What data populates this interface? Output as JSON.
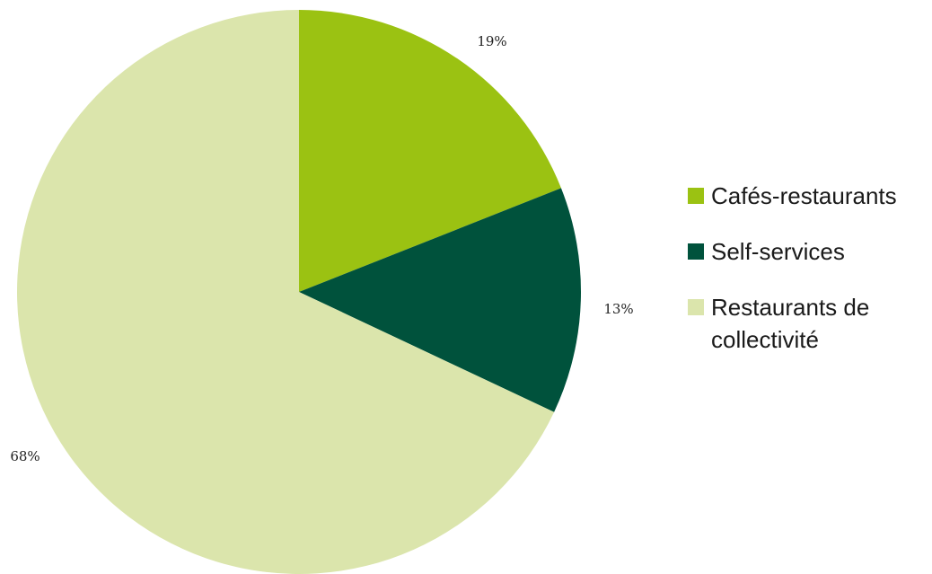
{
  "chart_data": {
    "type": "pie",
    "title": "",
    "slices": [
      {
        "label": "Cafés-restaurants",
        "value": 19,
        "display": "19%",
        "color": "#9bc212"
      },
      {
        "label": "Self-services",
        "value": 13,
        "display": "13%",
        "color": "#00523c"
      },
      {
        "label": "Restaurants de collectivité",
        "value": 68,
        "display": "68%",
        "color": "#dbe5ac"
      }
    ],
    "start_angle": "12 o'clock",
    "direction": "clockwise",
    "legend_position": "right"
  }
}
